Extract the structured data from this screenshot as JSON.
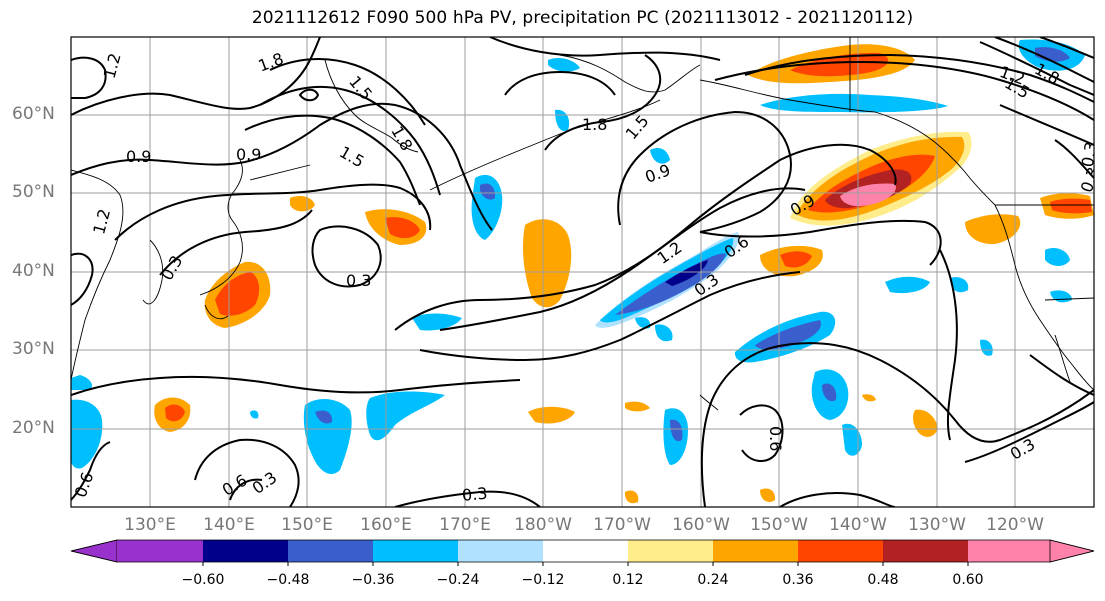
{
  "title": "2021112612 F090 500 hPa PV, precipitation PC (2021113012 - 2021120112)",
  "lat_labels": [
    "60°N",
    "50°N",
    "40°N",
    "30°N",
    "20°N"
  ],
  "lon_labels": [
    "130°E",
    "140°E",
    "150°E",
    "160°E",
    "170°E",
    "180°W",
    "170°W",
    "160°W",
    "150°W",
    "140°W",
    "130°W",
    "120°W"
  ],
  "colorbar": {
    "ticks": [
      "−0.60",
      "−0.48",
      "−0.36",
      "−0.24",
      "−0.12",
      "0.12",
      "0.24",
      "0.36",
      "0.48",
      "0.60"
    ],
    "colors": [
      "#9932cc",
      "#00008b",
      "#3a5fcd",
      "#00bfff",
      "#b0e2ff",
      "#ffffff",
      "#ffec8b",
      "#ffa500",
      "#ff4500",
      "#b22222",
      "#ff82ab"
    ]
  },
  "contour_labels": [
    "1.2",
    "1.8",
    "1.5",
    "1.8",
    "1.5",
    "0.9",
    "0.9",
    "0.9",
    "1.2",
    "0.6",
    "0.3",
    "0.3",
    "0.3",
    "0.9",
    "0.6",
    "0.3",
    "0.6",
    "0.3",
    "0.3",
    "1.2",
    "1.5",
    "1.8",
    "0.3",
    "1.2",
    "1.5",
    "0.3",
    "1.8",
    "0.6"
  ],
  "map_data": {
    "extent_lon": [
      120,
      250
    ],
    "extent_lat": [
      10,
      70
    ],
    "projection": "PlateCarree",
    "fields": [
      "500 hPa PV (contours)",
      "precipitation PC (shaded)"
    ]
  }
}
